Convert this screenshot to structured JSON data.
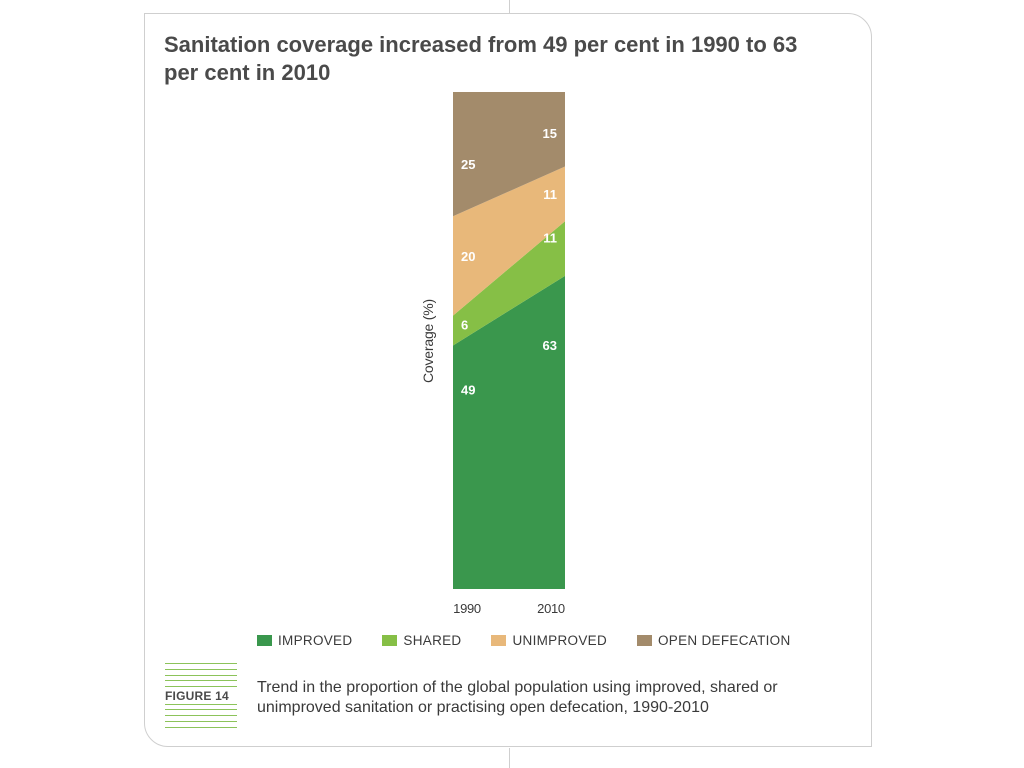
{
  "title": "Sanitation coverage increased from 49 per cent in 1990 to 63 per cent in 2010",
  "figure_label": "FIGURE 14",
  "caption": "Trend in the proportion of the global population using improved, shared or unimproved sanitation or practising open defecation, 1990-2010",
  "colors": {
    "improved": "#3a974d",
    "shared": "#86bf46",
    "unimproved": "#e8b87a",
    "open_defecation": "#a38b6b",
    "accent_lines": "#8cc35a"
  },
  "chart_data": {
    "type": "area",
    "title": "Sanitation coverage increased from 49 per cent in 1990 to 63 per cent in 2010",
    "xlabel": "",
    "ylabel": "Coverage (%)",
    "x": [
      "1990",
      "2010"
    ],
    "ylim": [
      0,
      100
    ],
    "stacked": true,
    "grid": false,
    "legend_position": "bottom",
    "series": [
      {
        "name": "IMPROVED",
        "values": [
          49,
          63
        ]
      },
      {
        "name": "SHARED",
        "values": [
          6,
          11
        ]
      },
      {
        "name": "UNIMPROVED",
        "values": [
          20,
          11
        ]
      },
      {
        "name": "OPEN DEFECATION",
        "values": [
          25,
          15
        ]
      }
    ]
  }
}
